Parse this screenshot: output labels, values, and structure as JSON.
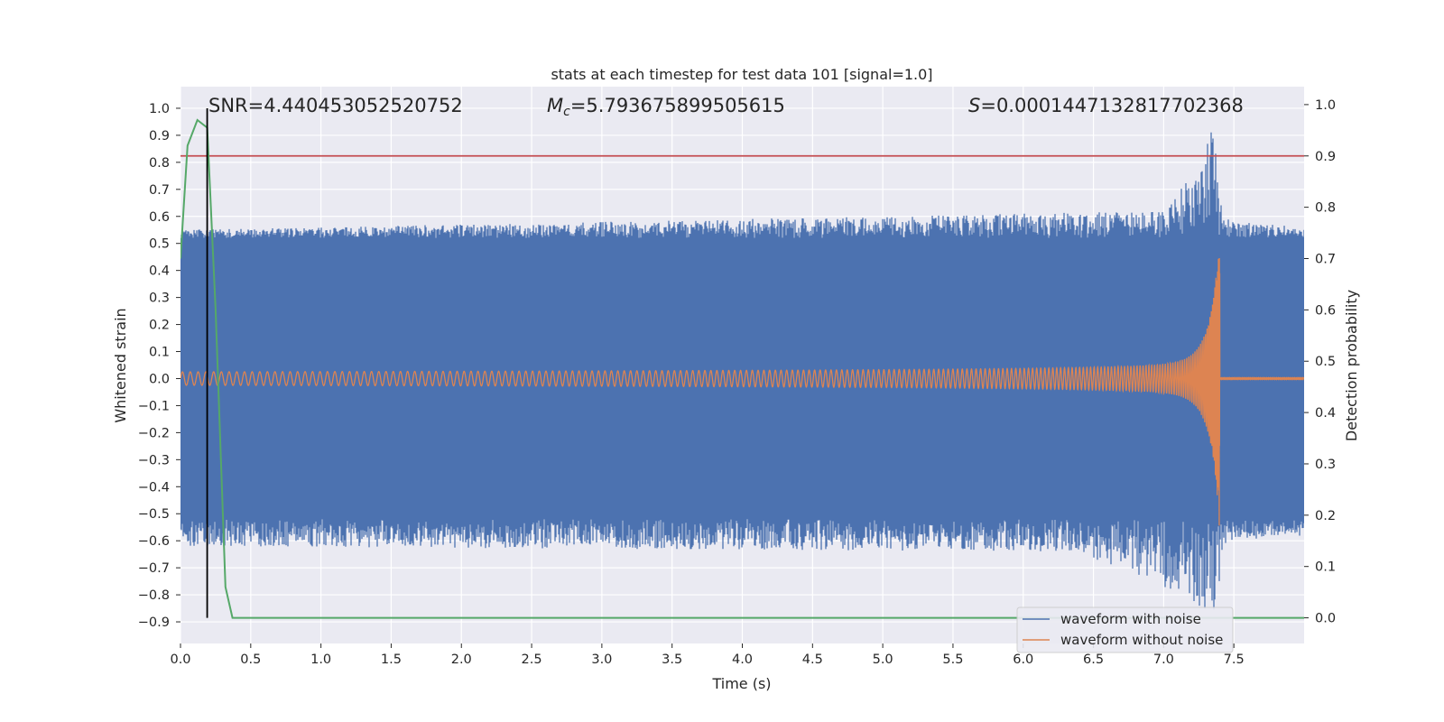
{
  "chart_data": {
    "type": "line",
    "title": "stats at each timestep for test data 101 [signal=1.0]",
    "xlabel": "Time (s)",
    "ylabel": "Whitened strain",
    "y2label": "Detection probability",
    "xlim": [
      0.0,
      8.0
    ],
    "ylim": [
      -0.98,
      1.08
    ],
    "y2lim": [
      -0.05,
      1.035
    ],
    "xticks": [
      0.0,
      0.5,
      1.0,
      1.5,
      2.0,
      2.5,
      3.0,
      3.5,
      4.0,
      4.5,
      5.0,
      5.5,
      6.0,
      6.5,
      7.0,
      7.5
    ],
    "yticks": [
      -0.9,
      -0.8,
      -0.7,
      -0.6,
      -0.5,
      -0.4,
      -0.3,
      -0.2,
      -0.1,
      0.0,
      0.1,
      0.2,
      0.3,
      0.4,
      0.5,
      0.6,
      0.7,
      0.8,
      0.9,
      1.0
    ],
    "y2ticks": [
      0.0,
      0.1,
      0.2,
      0.3,
      0.4,
      0.5,
      0.6,
      0.7,
      0.8,
      0.9,
      1.0
    ],
    "grid": true,
    "legend_position": "lower-right",
    "annotations": {
      "snr": "SNR=4.440453052520752",
      "mc_symbol": "M",
      "mc_sub": "c",
      "mc_value": "=5.793675899505615",
      "s_symbol": "S",
      "s_value": "=0.0001447132817702368"
    },
    "threshold": {
      "y2": 0.9,
      "color": "#c44e52"
    },
    "detection_time": 0.19,
    "series": [
      {
        "name": "waveform with noise",
        "color": "#4c72b0",
        "kind": "noise",
        "envelope_max": [
          [
            0.0,
            0.55
          ],
          [
            7.0,
            0.62
          ],
          [
            7.15,
            0.72
          ],
          [
            7.28,
            0.82
          ],
          [
            7.36,
            1.0
          ],
          [
            7.42,
            0.6
          ],
          [
            7.5,
            0.58
          ],
          [
            8.0,
            0.56
          ]
        ],
        "envelope_min": [
          [
            0.0,
            -0.62
          ],
          [
            6.3,
            -0.64
          ],
          [
            6.8,
            -0.72
          ],
          [
            7.2,
            -0.82
          ],
          [
            7.35,
            -0.9
          ],
          [
            7.45,
            -0.6
          ],
          [
            8.0,
            -0.58
          ]
        ],
        "core": [
          [
            0.0,
            0.52
          ],
          [
            8.0,
            0.52
          ]
        ]
      },
      {
        "name": "waveform without noise",
        "color": "#dd8452",
        "kind": "chirp",
        "t_merge": 7.4,
        "amp_initial": 0.025,
        "amp_peak_positive": 0.51,
        "amp_peak_negative": -0.6
      },
      {
        "name": "",
        "color": "#55a868",
        "kind": "probability",
        "axis": "y2",
        "x": [
          0.0,
          0.05,
          0.12,
          0.19,
          0.25,
          0.32,
          0.37,
          0.45,
          8.0
        ],
        "y": [
          0.7,
          0.92,
          0.97,
          0.955,
          0.6,
          0.06,
          0.0,
          0.0,
          0.0
        ]
      }
    ]
  }
}
